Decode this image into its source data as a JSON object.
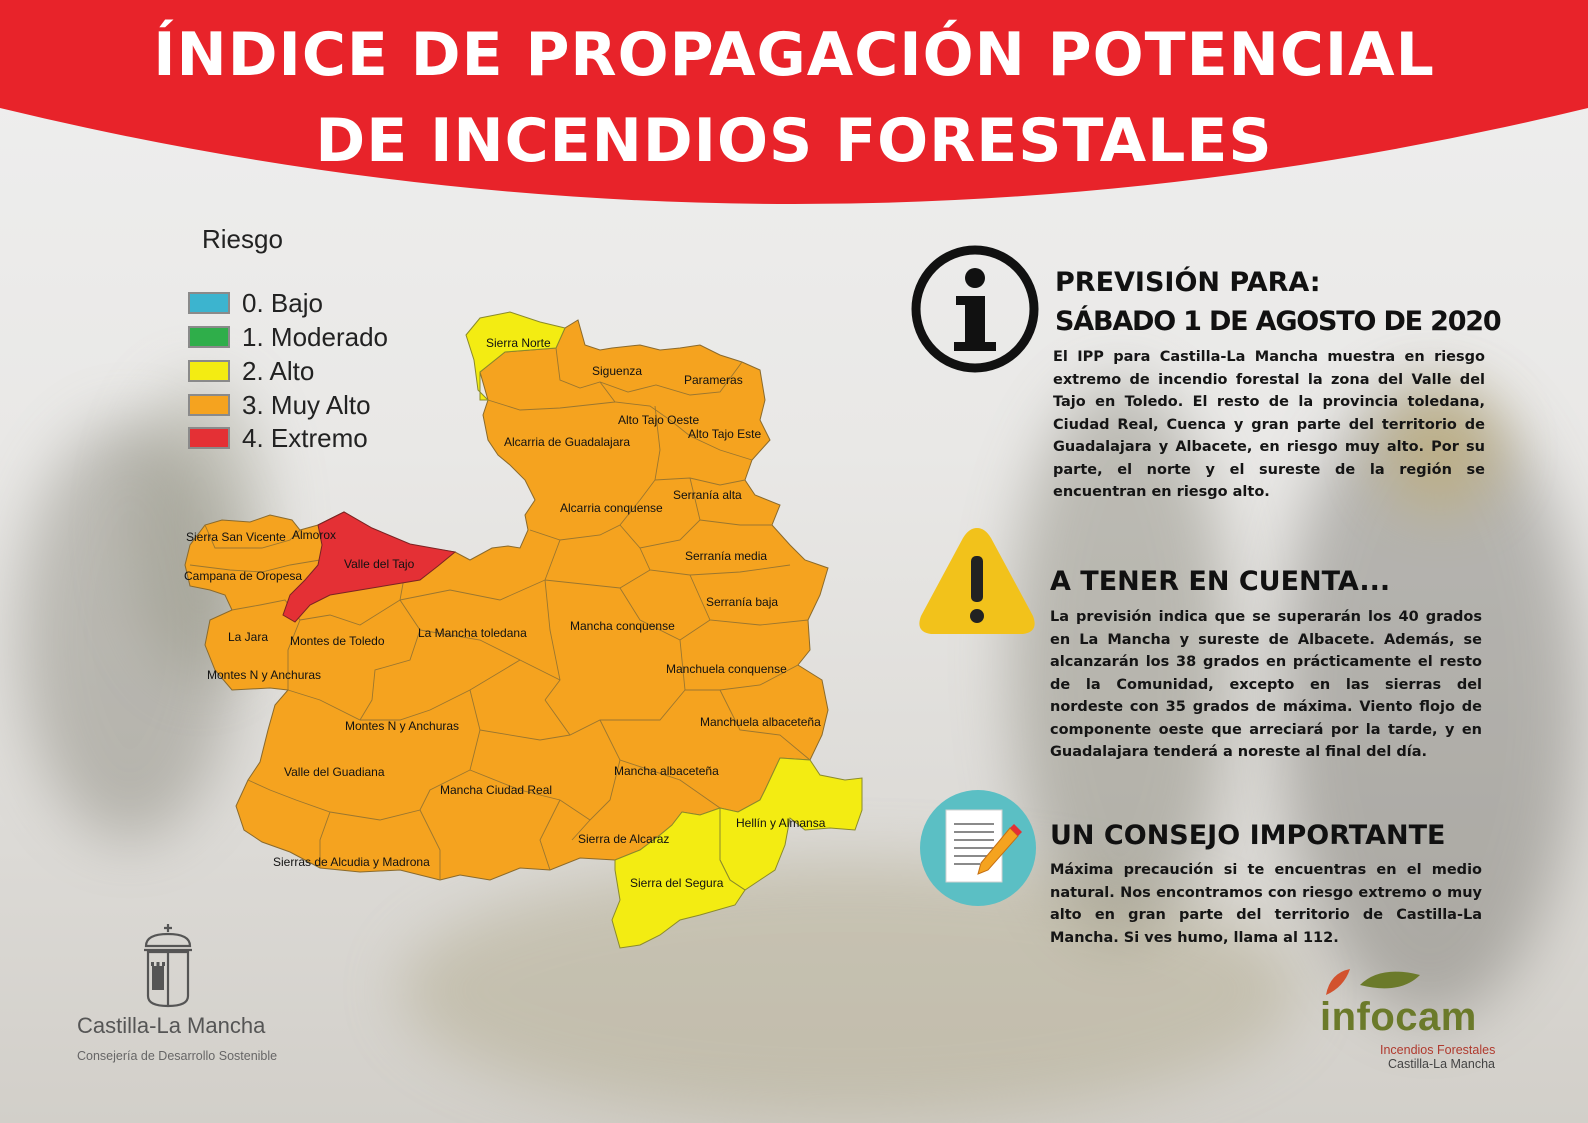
{
  "header": {
    "title_line1": "ÍNDICE DE PROPAGACIÓN POTENCIAL",
    "title_line2": "DE INCENDIOS FORESTALES",
    "color": "#e8232a"
  },
  "legend": {
    "title": "Riesgo",
    "items": [
      {
        "label": "0. Bajo",
        "color": "#3cb4cf"
      },
      {
        "label": "1. Moderado",
        "color": "#2fae4a"
      },
      {
        "label": "2. Alto",
        "color": "#f3ec12"
      },
      {
        "label": "3. Muy Alto",
        "color": "#f5a31f"
      },
      {
        "label": "4. Extremo",
        "color": "#e43035"
      }
    ]
  },
  "map": {
    "regions": [
      {
        "name": "Sierra Norte",
        "risk": "2. Alto"
      },
      {
        "name": "Siguenza",
        "risk": "3. Muy Alto"
      },
      {
        "name": "Parameras",
        "risk": "3. Muy Alto"
      },
      {
        "name": "Alto Tajo Oeste",
        "risk": "3. Muy Alto"
      },
      {
        "name": "Alto Tajo Este",
        "risk": "3. Muy Alto"
      },
      {
        "name": "Alcarria de Guadalajara",
        "risk": "3. Muy Alto"
      },
      {
        "name": "Serranía alta",
        "risk": "3. Muy Alto"
      },
      {
        "name": "Alcarria conquense",
        "risk": "3. Muy Alto"
      },
      {
        "name": "Serranía media",
        "risk": "3. Muy Alto"
      },
      {
        "name": "Serranía baja",
        "risk": "3. Muy Alto"
      },
      {
        "name": "Sierra San Vicente",
        "risk": "3. Muy Alto"
      },
      {
        "name": "Almorox",
        "risk": "3. Muy Alto"
      },
      {
        "name": "Valle del Tajo",
        "risk": "4. Extremo"
      },
      {
        "name": "Campana de Oropesa",
        "risk": "3. Muy Alto"
      },
      {
        "name": "La Jara",
        "risk": "3. Muy Alto"
      },
      {
        "name": "Montes de Toledo",
        "risk": "3. Muy Alto"
      },
      {
        "name": "La Mancha toledana",
        "risk": "3. Muy Alto"
      },
      {
        "name": "Mancha conquense",
        "risk": "3. Muy Alto"
      },
      {
        "name": "Manchuela conquense",
        "risk": "3. Muy Alto"
      },
      {
        "name": "Montes N y Anchuras (Toledo)",
        "label": "Montes N y Anchuras",
        "risk": "3. Muy Alto"
      },
      {
        "name": "Montes N y Anchuras (Ciudad Real)",
        "label": "Montes N y Anchuras",
        "risk": "3. Muy Alto"
      },
      {
        "name": "Manchuela albaceteña",
        "risk": "3. Muy Alto"
      },
      {
        "name": "Valle del Guadiana",
        "risk": "3. Muy Alto"
      },
      {
        "name": "Mancha Ciudad Real",
        "risk": "3. Muy Alto"
      },
      {
        "name": "Mancha albaceteña",
        "risk": "3. Muy Alto"
      },
      {
        "name": "Hellín y Almansa",
        "risk": "2. Alto"
      },
      {
        "name": "Sierra de Alcaraz",
        "risk": "3. Muy Alto"
      },
      {
        "name": "Sierras de Alcudia y Madrona",
        "risk": "3. Muy Alto"
      },
      {
        "name": "Sierra del Segura",
        "risk": "2. Alto"
      }
    ]
  },
  "forecast": {
    "title_line1": "PREVISIÓN PARA:",
    "title_line2": "SÁBADO 1 DE AGOSTO DE 2020",
    "body": "El IPP para Castilla-La Mancha muestra en riesgo extremo de incendio forestal la zona del Valle del Tajo en Toledo. El resto de la provincia toledana, Ciudad Real, Cuenca y gran parte del territorio de Guadalajara y Albacete, en riesgo muy alto. Por su parte, el norte y el sureste de la región se encuentran en riesgo alto.",
    "icon": "info-icon"
  },
  "warning": {
    "title": "A TENER EN CUENTA...",
    "body": "La previsión indica que se superarán los 40 grados en La Mancha y sureste de Albacete. Además, se alcanzarán los 38 grados en prácticamente el resto de la Comunidad, excepto en las sierras del nordeste con 35 grados de máxima. Viento flojo de componente oeste que arreciará por la tarde, y en Guadalajara tenderá a noreste al final del día.",
    "icon": "warning-icon",
    "icon_color": "#f2c21b"
  },
  "advice": {
    "title": "UN CONSEJO IMPORTANTE",
    "body": "Máxima precaución si te encuentras en el medio natural. Nos encontramos con riesgo extremo o muy alto en gran parte del territorio de Castilla-La Mancha. Si ves humo, llama al 112.",
    "icon": "document-pencil-icon",
    "icon_color": "#5bbfc4"
  },
  "footer": {
    "clm_name": "Castilla-La Mancha",
    "clm_department": "Consejería de Desarrollo Sostenible",
    "clm_logo": "castle-crest-logo",
    "infocam_name": "infocam",
    "infocam_sub1": "Incendios Forestales",
    "infocam_sub2": "Castilla-La Mancha",
    "infocam_logo": "leaf-logo"
  }
}
